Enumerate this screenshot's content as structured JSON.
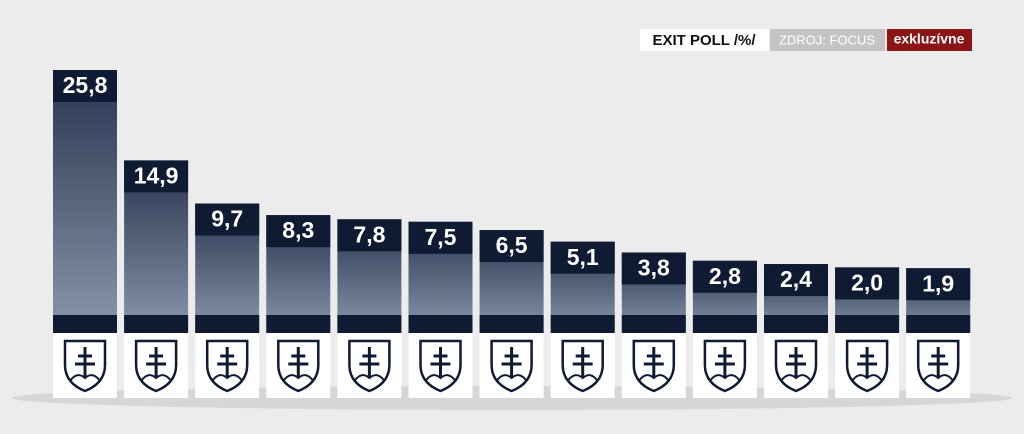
{
  "chart_data": {
    "type": "bar",
    "title": "EXIT POLL /%/",
    "source": "ZDROJ: FOCUS",
    "badge": "exkluzívne",
    "categories": [
      null,
      null,
      null,
      null,
      null,
      null,
      null,
      null,
      null,
      null,
      null,
      null,
      null
    ],
    "values": [
      25.8,
      14.9,
      9.7,
      8.3,
      7.8,
      7.5,
      6.5,
      5.1,
      3.8,
      2.8,
      2.4,
      2.0,
      1.9
    ],
    "value_labels": [
      "25,8",
      "14,9",
      "9,7",
      "8,3",
      "7,8",
      "7,5",
      "6,5",
      "5,1",
      "3,8",
      "2,8",
      "2,4",
      "2,0",
      "1,9"
    ],
    "color": "#4a5a76"
  }
}
